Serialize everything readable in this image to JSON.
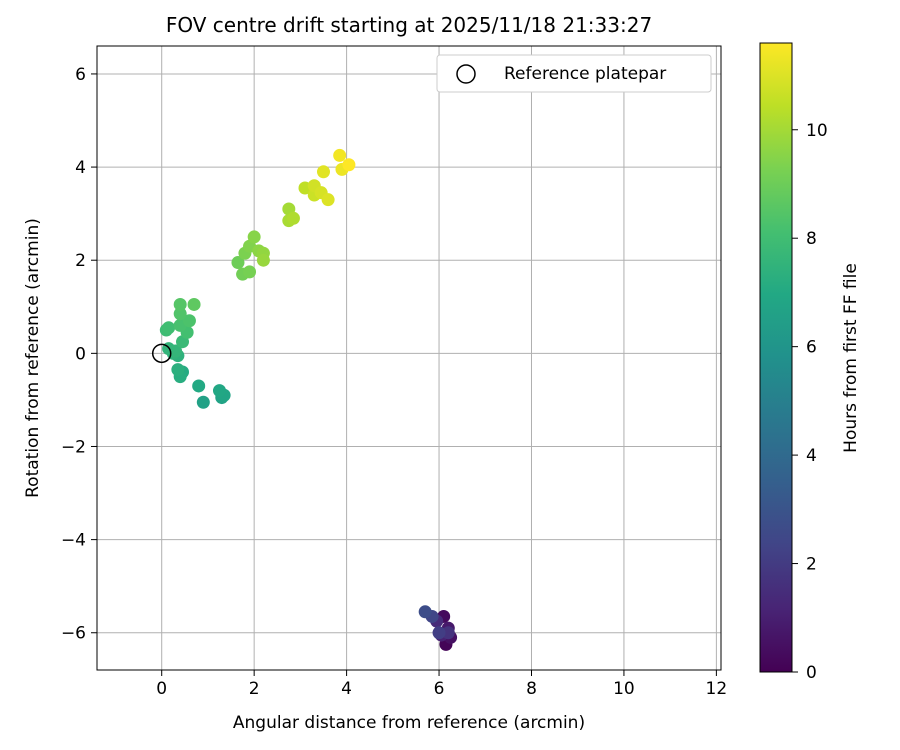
{
  "chart_data": {
    "type": "scatter",
    "title": "FOV centre drift starting at 2025/11/18 21:33:27",
    "xlabel": "Angular distance from reference (arcmin)",
    "ylabel": "Rotation from reference (arcmin)",
    "xlim": [
      -1.4,
      12.1
    ],
    "ylim": [
      -6.8,
      6.6
    ],
    "xticks": [
      0,
      2,
      4,
      6,
      8,
      10,
      12
    ],
    "yticks": [
      -6,
      -4,
      -2,
      0,
      2,
      4,
      6
    ],
    "grid": true,
    "legend": {
      "position": "top-right",
      "entries": [
        {
          "label": "Reference platepar",
          "marker": "open-circle"
        }
      ]
    },
    "reference_point": {
      "x": 0,
      "y": 0
    },
    "colorbar": {
      "label": "Hours from first FF file",
      "colormap": "viridis",
      "range": [
        0,
        11.6
      ],
      "ticks": [
        0,
        2,
        4,
        6,
        8,
        10
      ]
    },
    "points": [
      {
        "x": 6.15,
        "y": -6.25,
        "h": 0.1
      },
      {
        "x": 6.1,
        "y": -5.65,
        "h": 0.3
      },
      {
        "x": 6.25,
        "y": -6.1,
        "h": 0.5
      },
      {
        "x": 6.2,
        "y": -5.9,
        "h": 0.8
      },
      {
        "x": 6.05,
        "y": -6.05,
        "h": 1.1
      },
      {
        "x": 5.95,
        "y": -5.75,
        "h": 1.4
      },
      {
        "x": 6.2,
        "y": -6.0,
        "h": 1.7
      },
      {
        "x": 6.0,
        "y": -6.0,
        "h": 2.1
      },
      {
        "x": 5.85,
        "y": -5.65,
        "h": 2.4
      },
      {
        "x": 5.7,
        "y": -5.55,
        "h": 2.7
      },
      {
        "x": 0.9,
        "y": -1.05,
        "h": 6.6
      },
      {
        "x": 1.3,
        "y": -0.95,
        "h": 6.7
      },
      {
        "x": 1.35,
        "y": -0.9,
        "h": 6.8
      },
      {
        "x": 1.25,
        "y": -0.8,
        "h": 6.9
      },
      {
        "x": 0.8,
        "y": -0.7,
        "h": 7.0
      },
      {
        "x": 0.45,
        "y": -0.4,
        "h": 7.1
      },
      {
        "x": 0.4,
        "y": -0.5,
        "h": 7.2
      },
      {
        "x": 0.35,
        "y": -0.35,
        "h": 7.3
      },
      {
        "x": 0.35,
        "y": -0.05,
        "h": 7.4
      },
      {
        "x": 0.25,
        "y": 0.0,
        "h": 7.5
      },
      {
        "x": 0.15,
        "y": 0.1,
        "h": 7.55
      },
      {
        "x": 0.3,
        "y": 0.05,
        "h": 7.6
      },
      {
        "x": 0.45,
        "y": 0.25,
        "h": 7.8
      },
      {
        "x": 0.1,
        "y": 0.5,
        "h": 7.9
      },
      {
        "x": 0.15,
        "y": 0.55,
        "h": 8.0
      },
      {
        "x": 0.55,
        "y": 0.45,
        "h": 8.1
      },
      {
        "x": 0.4,
        "y": 0.6,
        "h": 8.2
      },
      {
        "x": 0.6,
        "y": 0.7,
        "h": 8.3
      },
      {
        "x": 0.4,
        "y": 0.85,
        "h": 8.4
      },
      {
        "x": 0.4,
        "y": 1.05,
        "h": 8.5
      },
      {
        "x": 0.7,
        "y": 1.05,
        "h": 8.7
      },
      {
        "x": 1.65,
        "y": 1.95,
        "h": 9.0
      },
      {
        "x": 1.75,
        "y": 1.7,
        "h": 9.1
      },
      {
        "x": 1.9,
        "y": 1.75,
        "h": 9.2
      },
      {
        "x": 1.8,
        "y": 2.15,
        "h": 9.3
      },
      {
        "x": 1.9,
        "y": 2.3,
        "h": 9.4
      },
      {
        "x": 2.0,
        "y": 2.5,
        "h": 9.5
      },
      {
        "x": 2.1,
        "y": 2.2,
        "h": 9.6
      },
      {
        "x": 2.2,
        "y": 2.15,
        "h": 9.7
      },
      {
        "x": 2.2,
        "y": 2.0,
        "h": 9.8
      },
      {
        "x": 2.75,
        "y": 3.1,
        "h": 10.0
      },
      {
        "x": 2.75,
        "y": 2.85,
        "h": 10.1
      },
      {
        "x": 2.85,
        "y": 2.9,
        "h": 10.2
      },
      {
        "x": 3.1,
        "y": 3.55,
        "h": 10.5
      },
      {
        "x": 3.3,
        "y": 3.4,
        "h": 10.7
      },
      {
        "x": 3.3,
        "y": 3.6,
        "h": 10.8
      },
      {
        "x": 3.45,
        "y": 3.45,
        "h": 10.9
      },
      {
        "x": 3.6,
        "y": 3.3,
        "h": 11.0
      },
      {
        "x": 3.5,
        "y": 3.9,
        "h": 11.1
      },
      {
        "x": 3.9,
        "y": 3.95,
        "h": 11.3
      },
      {
        "x": 3.85,
        "y": 4.25,
        "h": 11.4
      },
      {
        "x": 4.05,
        "y": 4.05,
        "h": 11.6
      }
    ]
  }
}
